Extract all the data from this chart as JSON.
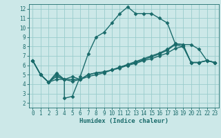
{
  "xlabel": "Humidex (Indice chaleur)",
  "background_color": "#cce8e8",
  "grid_color": "#99cccc",
  "line_color": "#1a6b6b",
  "marker": "D",
  "markersize": 2.5,
  "linewidth": 1.0,
  "xlim": [
    -0.5,
    23.5
  ],
  "ylim": [
    1.5,
    12.5
  ],
  "xticks": [
    0,
    1,
    2,
    3,
    4,
    5,
    6,
    7,
    8,
    9,
    10,
    11,
    12,
    13,
    14,
    15,
    16,
    17,
    18,
    19,
    20,
    21,
    22,
    23
  ],
  "yticks": [
    2,
    3,
    4,
    5,
    6,
    7,
    8,
    9,
    10,
    11,
    12
  ],
  "line1_x": [
    0,
    1,
    2,
    3,
    4,
    4,
    5,
    6,
    7,
    8,
    9,
    10,
    11,
    12,
    13,
    14,
    15,
    16,
    17,
    18,
    19,
    20,
    21,
    22,
    23
  ],
  "line1_y": [
    6.5,
    5.0,
    4.2,
    4.5,
    4.5,
    2.5,
    2.7,
    4.8,
    7.2,
    9.0,
    9.5,
    10.5,
    11.5,
    12.2,
    11.5,
    11.5,
    11.5,
    11.0,
    10.5,
    8.3,
    8.2,
    8.2,
    7.7,
    6.5,
    6.3
  ],
  "line2_x": [
    0,
    1,
    2,
    3,
    4,
    5,
    6,
    7,
    8,
    9,
    10,
    11,
    12,
    13,
    14,
    15,
    16,
    17,
    18,
    19,
    20,
    21,
    22,
    23
  ],
  "line2_y": [
    6.5,
    5.0,
    4.2,
    5.2,
    4.5,
    4.8,
    4.5,
    4.8,
    5.0,
    5.2,
    5.5,
    5.8,
    6.0,
    6.3,
    6.6,
    6.9,
    7.2,
    7.6,
    8.2,
    8.0,
    6.3,
    6.3,
    6.5,
    6.3
  ],
  "line3_x": [
    0,
    1,
    2,
    3,
    4,
    5,
    6,
    7,
    8,
    9,
    10,
    11,
    12,
    13,
    14,
    15,
    16,
    17,
    18,
    19,
    20,
    21,
    22,
    23
  ],
  "line3_y": [
    6.5,
    5.0,
    4.2,
    5.0,
    4.5,
    4.5,
    4.5,
    5.0,
    5.2,
    5.3,
    5.5,
    5.8,
    6.1,
    6.4,
    6.7,
    7.0,
    7.3,
    7.7,
    8.3,
    8.2,
    6.3,
    6.3,
    6.5,
    6.3
  ],
  "line4_x": [
    0,
    1,
    2,
    3,
    4,
    5,
    6,
    7,
    8,
    9,
    10,
    11,
    12,
    13,
    14,
    15,
    16,
    17,
    18,
    19,
    20,
    21,
    22,
    23
  ],
  "line4_y": [
    6.5,
    5.0,
    4.2,
    4.8,
    4.5,
    4.3,
    4.5,
    5.0,
    5.2,
    5.3,
    5.5,
    5.7,
    6.0,
    6.2,
    6.5,
    6.7,
    7.0,
    7.3,
    7.8,
    8.0,
    6.3,
    6.3,
    6.5,
    6.3
  ]
}
